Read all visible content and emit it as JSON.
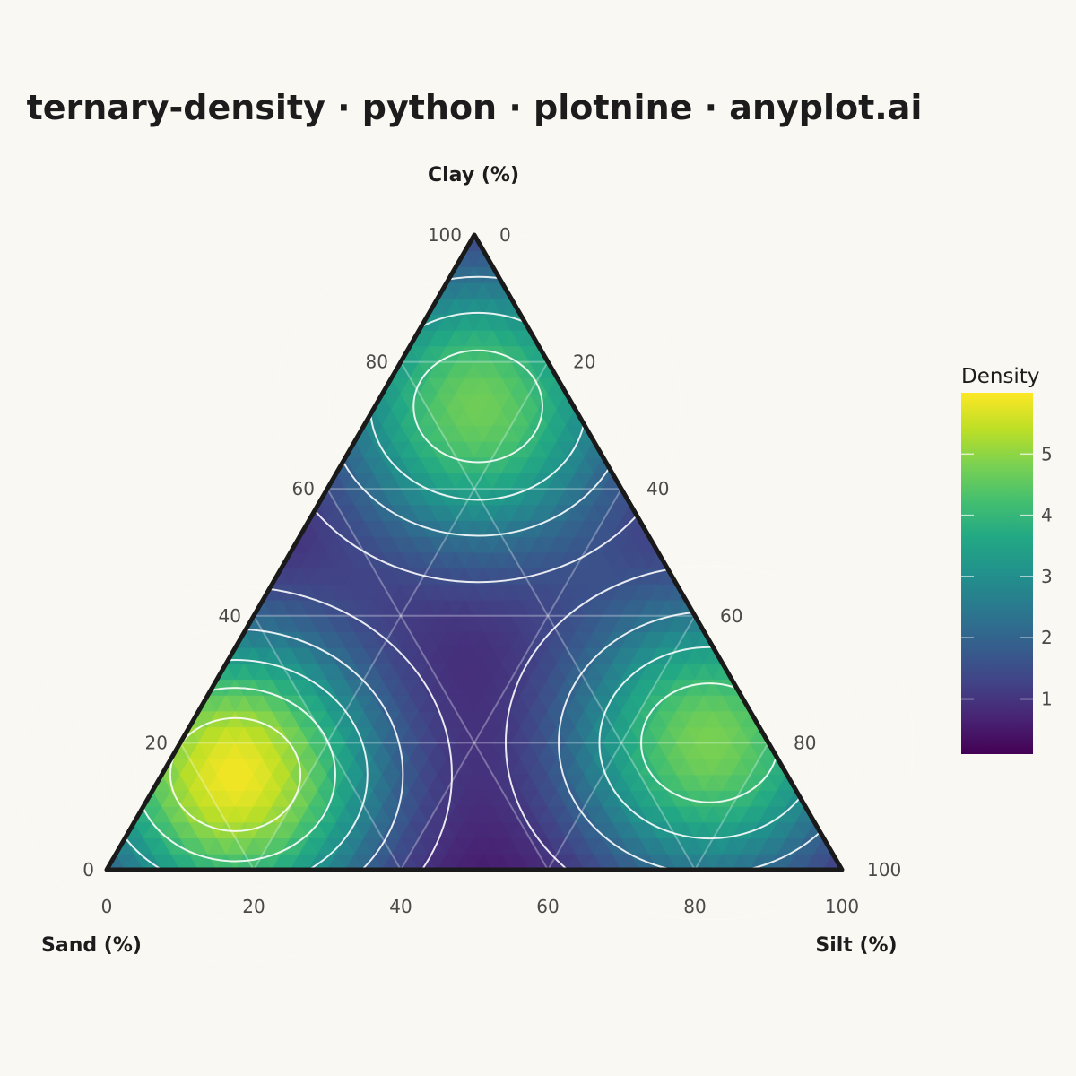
{
  "title": "ternary-density · python · plotnine · anyplot.ai",
  "chart_data": {
    "type": "heatmap",
    "subtype": "ternary-density",
    "axes": {
      "top": {
        "label": "Clay (%)",
        "component": "clay"
      },
      "left": {
        "label": "Sand (%)",
        "component": "sand"
      },
      "right": {
        "label": "Silt (%)",
        "component": "silt"
      }
    },
    "ticks": [
      0,
      20,
      40,
      60,
      80,
      100
    ],
    "tick_labels": [
      "0",
      "20",
      "40",
      "60",
      "80",
      "100"
    ],
    "grid": true,
    "colormap": "viridis",
    "colors": {
      "low": "#440154",
      "high": "#FDE725",
      "outline": "#1a1a1a",
      "background": "#FAF8F2",
      "contour": "#ffffff"
    },
    "clusters": [
      {
        "sand": 75,
        "silt": 10,
        "clay": 15,
        "peak_density": 5.9
      },
      {
        "sand": 8,
        "silt": 72,
        "clay": 20,
        "peak_density": 4.8
      },
      {
        "sand": 13,
        "silt": 14,
        "clay": 73,
        "peak_density": 4.7
      }
    ],
    "contour_levels": [
      1,
      2,
      3,
      4,
      5
    ],
    "legend": {
      "title": "Density",
      "position": "right",
      "ticks": [
        1,
        2,
        3,
        4,
        5
      ],
      "tick_labels": [
        "1",
        "2",
        "3",
        "4",
        "5"
      ],
      "range": [
        0.1,
        6.0
      ]
    }
  }
}
